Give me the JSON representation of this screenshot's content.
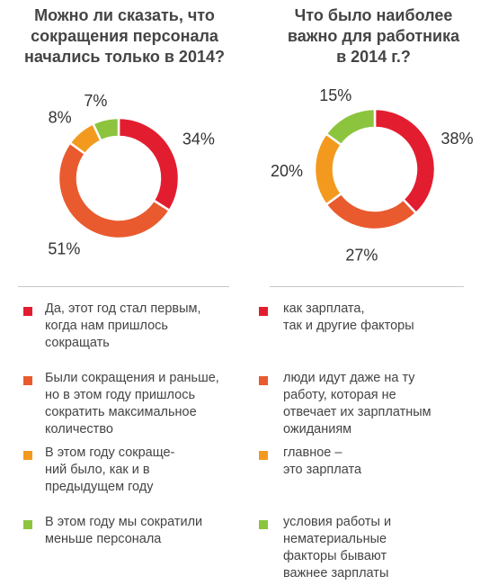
{
  "colors": {
    "red": "#e31d30",
    "orange": "#e95a2e",
    "amber": "#f39a1e",
    "green": "#8cc43e"
  },
  "chart_data": [
    {
      "type": "pie",
      "title": [
        "Можно ли сказать, что",
        "сокращения персонала",
        "начались только в 2014?"
      ],
      "categories": [
        "Да, этот год стал первым, когда нам пришлось сокращать",
        "Были сокращения и раньше, но в этом году пришлось сократить максимальное количество",
        "В этом году сокращений было, как и в предыдущем году",
        "В этом году мы сократили меньше персонала"
      ],
      "values": [
        34,
        51,
        8,
        7
      ],
      "value_labels": [
        "34%",
        "51%",
        "8%",
        "7%"
      ],
      "colors": [
        "#e31d30",
        "#e95a2e",
        "#f39a1e",
        "#8cc43e"
      ],
      "donut": true,
      "legend": "bottom"
    },
    {
      "type": "pie",
      "title": [
        "Что было наиболее",
        "важно для работника",
        "в 2014 г.?"
      ],
      "categories": [
        "как зарплата, так и другие факторы",
        "люди идут даже на ту работу, которая не отвечает их зарплатным ожиданиям",
        "главное – это зарплата",
        "условия работы и нематериальные факторы бывают важнее зарплаты"
      ],
      "values": [
        38,
        27,
        20,
        15
      ],
      "value_labels": [
        "38%",
        "27%",
        "20%",
        "15%"
      ],
      "colors": [
        "#e31d30",
        "#e95a2e",
        "#f39a1e",
        "#8cc43e"
      ],
      "donut": true,
      "legend": "bottom"
    }
  ],
  "legends": [
    [
      [
        "Да, этот год стал первым,",
        "когда нам пришлось",
        "сокращать"
      ],
      [
        "Были сокращения и раньше,",
        "но в этом году пришлось",
        "сократить максимальное",
        "количество"
      ],
      [
        "В этом году сокраще-",
        "ний было, как и в",
        "предыдущем году"
      ],
      [
        "В этом году мы сократили",
        "меньше персонала"
      ]
    ],
    [
      [
        "как зарплата,",
        "так и другие факторы"
      ],
      [
        "люди идут даже на ту",
        "работу, которая не",
        "отвечает их зарплатным",
        "ожиданиям"
      ],
      [
        "главное –",
        "это зарплата"
      ],
      [
        "условия работы и",
        "нематериальные",
        "факторы бывают",
        "важнее зарплаты"
      ]
    ]
  ]
}
